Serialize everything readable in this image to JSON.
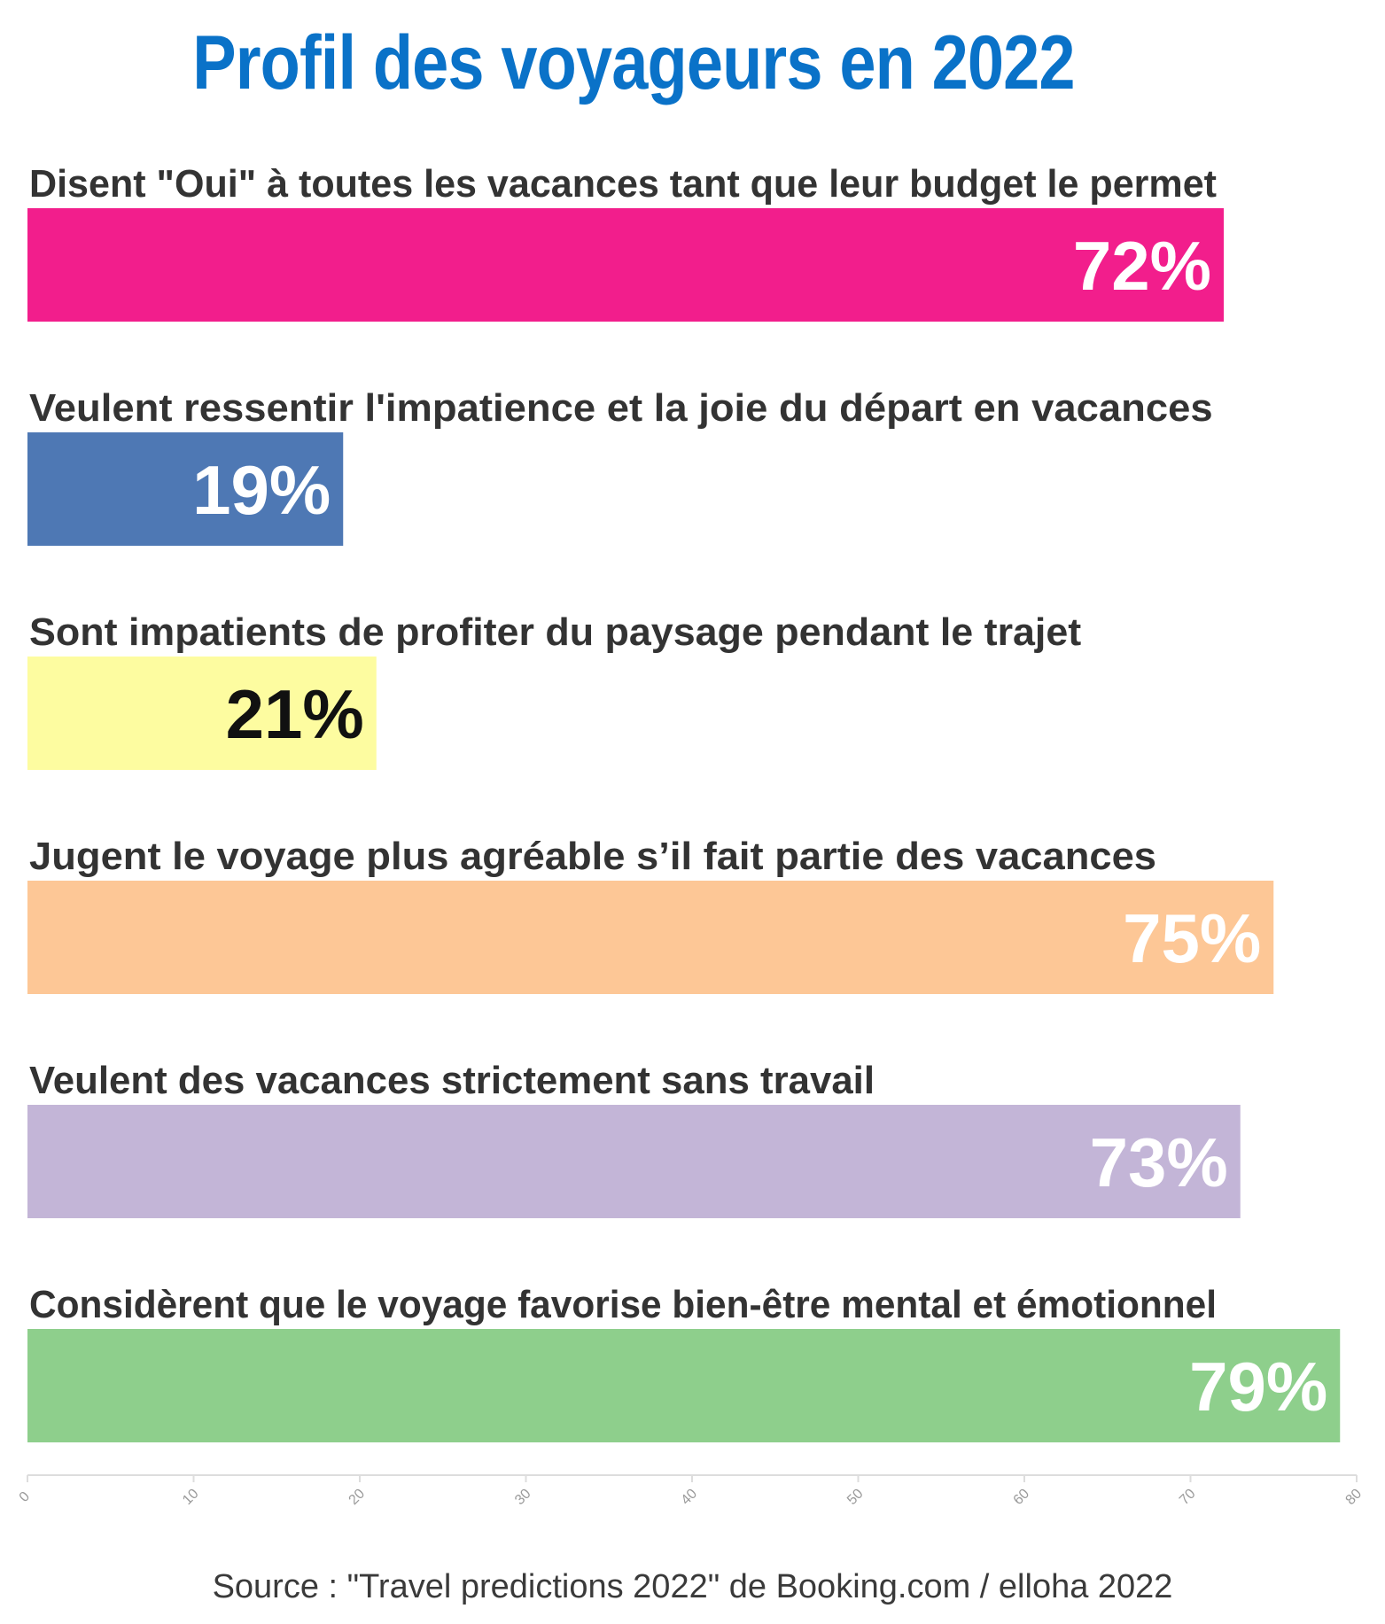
{
  "chart_data": {
    "type": "bar",
    "orientation": "horizontal",
    "title": "Profil des voyageurs en 2022",
    "source": "Source : \"Travel predictions 2022\" de Booking.com / elloha 2022",
    "categories": [
      "Disent \"Oui\" à toutes les vacances tant que leur budget le permet",
      "Veulent ressentir l'impatience et la joie du départ en vacances",
      "Sont impatients de profiter du paysage pendant le trajet",
      "Jugent le voyage plus agréable s’il fait partie des vacances",
      "Veulent des vacances strictement sans travail",
      "Considèrent que le voyage favorise bien-être mental et émotionnel"
    ],
    "values": [
      72,
      19,
      21,
      75,
      73,
      79
    ],
    "value_labels": [
      "72%",
      "19%",
      "21%",
      "75%",
      "73%",
      "79%"
    ],
    "bar_colors": [
      "#f21e8c",
      "#4e78b4",
      "#fdfca0",
      "#fdc796",
      "#c3b5d7",
      "#8ecf8c"
    ],
    "label_colors": [
      "#ffffff",
      "#ffffff",
      "#111111",
      "#ffffff",
      "#ffffff",
      "#ffffff"
    ],
    "xlim": [
      0,
      80
    ],
    "xticks": [
      "0",
      "10",
      "20",
      "30",
      "40",
      "50",
      "60",
      "70",
      "80"
    ],
    "grid": false,
    "legend": "none"
  }
}
